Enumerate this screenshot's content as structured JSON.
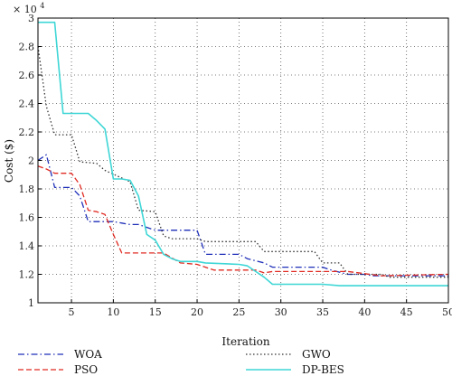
{
  "chart_data": {
    "type": "line",
    "title": "",
    "xlabel": "Iteration",
    "ylabel": "Cost ($)",
    "y_multiplier_label": "× 10",
    "y_multiplier_exponent": "4",
    "xlim": [
      1,
      50
    ],
    "ylim": [
      1.0,
      3.0
    ],
    "xticks": [
      5,
      10,
      15,
      20,
      25,
      30,
      35,
      40,
      45,
      50
    ],
    "yticks": [
      1,
      1.2,
      1.4,
      1.6,
      1.8,
      2,
      2.2,
      2.4,
      2.6,
      2.8,
      3
    ],
    "ytick_labels": [
      "1",
      "1.2",
      "1.4",
      "1.6",
      "1.8",
      "2",
      "2.2",
      "2.4",
      "2.6",
      "2.8",
      "3"
    ],
    "grid": true,
    "legend_placement": "below",
    "series": [
      {
        "name": "WOA",
        "color": "#1f2fb8",
        "dash": "dashdot",
        "x": [
          1,
          2,
          3,
          5,
          6,
          7,
          10,
          11,
          12,
          13,
          15,
          20,
          21,
          22,
          25,
          26,
          28,
          29,
          35,
          36,
          38,
          40,
          41,
          50
        ],
        "y": [
          2.0,
          2.04,
          1.81,
          1.81,
          1.75,
          1.57,
          1.57,
          1.56,
          1.55,
          1.55,
          1.51,
          1.51,
          1.34,
          1.34,
          1.34,
          1.31,
          1.28,
          1.25,
          1.25,
          1.23,
          1.2,
          1.2,
          1.19,
          1.19
        ]
      },
      {
        "name": "GWO",
        "color": "#333333",
        "dash": "dotted",
        "x": [
          1,
          2,
          3,
          5,
          6,
          8,
          9,
          12,
          13,
          15,
          16,
          17,
          20,
          21,
          23,
          27,
          28,
          34,
          35,
          37,
          38,
          42,
          43,
          50
        ],
        "y": [
          2.8,
          2.38,
          2.18,
          2.18,
          1.99,
          1.98,
          1.93,
          1.85,
          1.65,
          1.64,
          1.47,
          1.45,
          1.45,
          1.43,
          1.43,
          1.43,
          1.36,
          1.36,
          1.28,
          1.28,
          1.2,
          1.2,
          1.18,
          1.18
        ]
      },
      {
        "name": "PSO",
        "color": "#e02a22",
        "dash": "dashed",
        "x": [
          1,
          2,
          3,
          5,
          6,
          7,
          8,
          9,
          10,
          11,
          15,
          16,
          18,
          20,
          21,
          22,
          27,
          28,
          29,
          35,
          36,
          38,
          42,
          50
        ],
        "y": [
          1.96,
          1.94,
          1.91,
          1.91,
          1.83,
          1.65,
          1.64,
          1.62,
          1.48,
          1.35,
          1.35,
          1.35,
          1.28,
          1.27,
          1.25,
          1.23,
          1.23,
          1.21,
          1.22,
          1.22,
          1.22,
          1.22,
          1.19,
          1.2
        ]
      },
      {
        "name": "DP-BES",
        "color": "#3fd6d6",
        "dash": "solid",
        "x": [
          1,
          3,
          4,
          7,
          8,
          9,
          10,
          11,
          12,
          13,
          14,
          15,
          16,
          17,
          18,
          20,
          21,
          25,
          26,
          27,
          28,
          29,
          35,
          37,
          45,
          50
        ],
        "y": [
          2.97,
          2.97,
          2.33,
          2.33,
          2.28,
          2.22,
          1.87,
          1.87,
          1.86,
          1.75,
          1.48,
          1.44,
          1.34,
          1.31,
          1.29,
          1.29,
          1.28,
          1.27,
          1.26,
          1.22,
          1.18,
          1.13,
          1.13,
          1.12,
          1.12,
          1.12
        ]
      }
    ]
  },
  "legend": [
    {
      "name": "WOA",
      "color": "#1f2fb8",
      "dash": "dashdot"
    },
    {
      "name": "GWO",
      "color": "#333333",
      "dash": "dotted"
    },
    {
      "name": "PSO",
      "color": "#e02a22",
      "dash": "dashed"
    },
    {
      "name": "DP-BES",
      "color": "#3fd6d6",
      "dash": "solid"
    }
  ]
}
